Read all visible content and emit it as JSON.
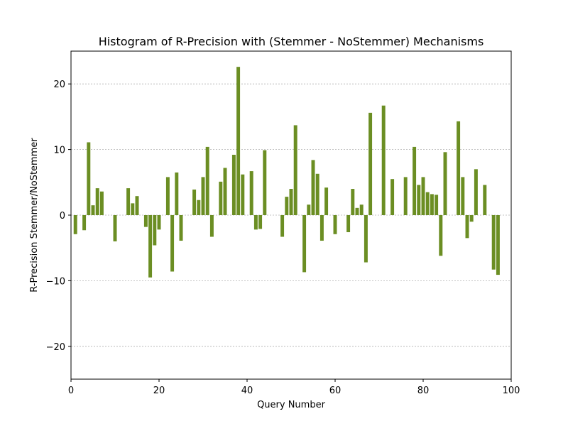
{
  "chart_data": {
    "type": "bar",
    "title": "Histogram of R-Precision with (Stemmer - NoStemmer) Mechanisms",
    "xlabel": "Query Number",
    "ylabel": "R-Precision Stemmer/NoStemmer",
    "xlim": [
      0,
      100
    ],
    "ylim": [
      -25,
      25
    ],
    "xticks": [
      0,
      20,
      40,
      60,
      80,
      100
    ],
    "yticks": [
      -20,
      -10,
      0,
      10,
      20
    ],
    "xtick_labels": [
      "0",
      "20",
      "40",
      "60",
      "80",
      "100"
    ],
    "ytick_labels": [
      "−20",
      "−10",
      "0",
      "10",
      "20"
    ],
    "grid": "horizontal dashed",
    "bar_color": "#6b8e23",
    "x": [
      1,
      3,
      4,
      5,
      6,
      7,
      10,
      13,
      14,
      15,
      17,
      18,
      19,
      20,
      22,
      23,
      24,
      25,
      28,
      29,
      30,
      31,
      32,
      34,
      35,
      37,
      38,
      39,
      41,
      42,
      43,
      44,
      48,
      49,
      50,
      51,
      53,
      54,
      55,
      56,
      57,
      58,
      60,
      63,
      64,
      65,
      66,
      67,
      68,
      71,
      73,
      76,
      78,
      79,
      80,
      81,
      82,
      83,
      84,
      85,
      88,
      89,
      90,
      91,
      92,
      94,
      96,
      97
    ],
    "values": [
      -2.9,
      -2.3,
      11.1,
      1.5,
      4.1,
      3.6,
      -4.0,
      4.1,
      1.8,
      2.9,
      -1.8,
      -9.5,
      -4.6,
      -2.2,
      5.8,
      -8.6,
      6.5,
      -3.9,
      3.9,
      2.3,
      5.8,
      10.4,
      -3.3,
      5.1,
      7.2,
      9.2,
      22.6,
      6.2,
      6.7,
      -2.2,
      -2.1,
      9.9,
      -3.3,
      2.8,
      4.0,
      13.7,
      -8.7,
      1.6,
      8.4,
      6.3,
      -3.9,
      4.2,
      -2.9,
      -2.6,
      4.0,
      1.1,
      1.6,
      -7.2,
      15.6,
      16.7,
      5.5,
      5.8,
      10.4,
      4.6,
      5.8,
      3.5,
      3.2,
      3.1,
      -6.2,
      9.6,
      14.3,
      5.8,
      -3.5,
      -1.0,
      7.0,
      4.6,
      -8.3,
      -9.1
    ]
  }
}
